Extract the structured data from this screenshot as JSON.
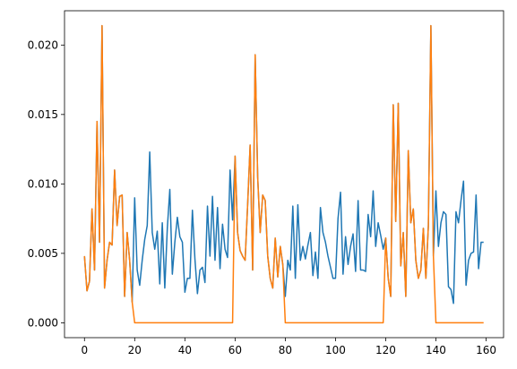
{
  "chart_data": {
    "type": "line",
    "x": [
      0,
      1,
      2,
      3,
      4,
      5,
      6,
      7,
      8,
      9,
      10,
      11,
      12,
      13,
      14,
      15,
      16,
      17,
      18,
      19,
      20,
      21,
      22,
      23,
      24,
      25,
      26,
      27,
      28,
      29,
      30,
      31,
      32,
      33,
      34,
      35,
      36,
      37,
      38,
      39,
      40,
      41,
      42,
      43,
      44,
      45,
      46,
      47,
      48,
      49,
      50,
      51,
      52,
      53,
      54,
      55,
      56,
      57,
      58,
      59,
      60,
      61,
      62,
      63,
      64,
      65,
      66,
      67,
      68,
      69,
      70,
      71,
      72,
      73,
      74,
      75,
      76,
      77,
      78,
      79,
      80,
      81,
      82,
      83,
      84,
      85,
      86,
      87,
      88,
      89,
      90,
      91,
      92,
      93,
      94,
      95,
      96,
      97,
      98,
      99,
      100,
      101,
      102,
      103,
      104,
      105,
      106,
      107,
      108,
      109,
      110,
      111,
      112,
      113,
      114,
      115,
      116,
      117,
      118,
      119,
      120,
      121,
      122,
      123,
      124,
      125,
      126,
      127,
      128,
      129,
      130,
      131,
      132,
      133,
      134,
      135,
      136,
      137,
      138,
      139,
      140,
      141,
      142,
      143,
      144,
      145,
      146,
      147,
      148,
      149,
      150,
      151,
      152,
      153,
      154,
      155,
      156,
      157,
      158,
      159
    ],
    "series": [
      {
        "color": "#1f77b4",
        "values": [
          0.0048,
          0.0023,
          0.003,
          0.0082,
          0.0038,
          0.0145,
          0.0058,
          0.0214,
          0.0025,
          0.0045,
          0.0058,
          0.0056,
          0.011,
          0.007,
          0.0091,
          0.0092,
          0.0019,
          0.0065,
          0.0045,
          0.0015,
          0.009,
          0.0038,
          0.0027,
          0.0045,
          0.006,
          0.007,
          0.0123,
          0.0065,
          0.0053,
          0.0066,
          0.0028,
          0.0072,
          0.0025,
          0.0068,
          0.0096,
          0.0035,
          0.0058,
          0.0076,
          0.0062,
          0.0058,
          0.0022,
          0.0032,
          0.0032,
          0.0081,
          0.0046,
          0.0021,
          0.0038,
          0.004,
          0.0029,
          0.0084,
          0.0048,
          0.0091,
          0.0045,
          0.0083,
          0.0039,
          0.0071,
          0.0053,
          0.0047,
          0.011,
          0.0074,
          0.012,
          0.0065,
          0.0052,
          0.0048,
          0.0045,
          0.0085,
          0.0128,
          0.0038,
          0.0193,
          0.0105,
          0.0065,
          0.0092,
          0.0088,
          0.0048,
          0.0032,
          0.0025,
          0.0061,
          0.0033,
          0.0055,
          0.0042,
          0.0019,
          0.0045,
          0.0038,
          0.0084,
          0.0032,
          0.0085,
          0.0045,
          0.0055,
          0.0046,
          0.0056,
          0.0065,
          0.0034,
          0.0051,
          0.0032,
          0.0083,
          0.0065,
          0.0058,
          0.0048,
          0.004,
          0.0032,
          0.0032,
          0.0075,
          0.0094,
          0.0035,
          0.0062,
          0.0042,
          0.0055,
          0.0064,
          0.0037,
          0.0088,
          0.0038,
          0.0038,
          0.0037,
          0.0078,
          0.0062,
          0.0095,
          0.0055,
          0.0072,
          0.0063,
          0.0053,
          0.0061,
          0.0032,
          0.0019,
          0.0157,
          0.0073,
          0.0158,
          0.0041,
          0.0065,
          0.0019,
          0.0124,
          0.0072,
          0.0082,
          0.0045,
          0.0032,
          0.0038,
          0.0068,
          0.0032,
          0.007,
          0.0214,
          0.0048,
          0.0095,
          0.0055,
          0.0072,
          0.008,
          0.0078,
          0.0026,
          0.0024,
          0.0014,
          0.008,
          0.0072,
          0.0088,
          0.0102,
          0.0027,
          0.0045,
          0.005,
          0.0051,
          0.0092,
          0.0039,
          0.0058,
          0.0058
        ]
      },
      {
        "color": "#ff7f0e",
        "values": [
          0.0048,
          0.0023,
          0.003,
          0.0082,
          0.0038,
          0.0145,
          0.0058,
          0.0214,
          0.0025,
          0.0045,
          0.0058,
          0.0056,
          0.011,
          0.007,
          0.0091,
          0.0092,
          0.0019,
          0.0065,
          0.0045,
          0.0015,
          0,
          0,
          0,
          0,
          0,
          0,
          0,
          0,
          0,
          0,
          0,
          0,
          0,
          0,
          0,
          0,
          0,
          0,
          0,
          0,
          0,
          0,
          0,
          0,
          0,
          0,
          0,
          0,
          0,
          0,
          0,
          0,
          0,
          0,
          0,
          0,
          0,
          0,
          0,
          0,
          0.012,
          0.0065,
          0.0052,
          0.0048,
          0.0045,
          0.0085,
          0.0128,
          0.0038,
          0.0193,
          0.0105,
          0.0065,
          0.0092,
          0.0088,
          0.0048,
          0.0032,
          0.0025,
          0.0061,
          0.0033,
          0.0055,
          0.0042,
          0,
          0,
          0,
          0,
          0,
          0,
          0,
          0,
          0,
          0,
          0,
          0,
          0,
          0,
          0,
          0,
          0,
          0,
          0,
          0,
          0,
          0,
          0,
          0,
          0,
          0,
          0,
          0,
          0,
          0,
          0,
          0,
          0,
          0,
          0,
          0,
          0,
          0,
          0,
          0,
          0.0061,
          0.0032,
          0.0019,
          0.0157,
          0.0073,
          0.0158,
          0.0041,
          0.0065,
          0.0019,
          0.0124,
          0.0072,
          0.0082,
          0.0045,
          0.0032,
          0.0038,
          0.0068,
          0.0032,
          0.007,
          0.0214,
          0.0048,
          0,
          0,
          0,
          0,
          0,
          0,
          0,
          0,
          0,
          0,
          0,
          0,
          0,
          0,
          0,
          0,
          0,
          0,
          0,
          0
        ]
      }
    ],
    "xlim": [
      -7.95,
      166.95
    ],
    "xticks": [
      0,
      20,
      40,
      60,
      80,
      100,
      120,
      140,
      160
    ],
    "ylim": [
      -0.00107,
      0.02247
    ],
    "yticks": [
      {
        "value": 0,
        "label": "0.000"
      },
      {
        "value": 0.005,
        "label": "0.005"
      },
      {
        "value": 0.01,
        "label": "0.010"
      },
      {
        "value": 0.015,
        "label": "0.015"
      },
      {
        "value": 0.02,
        "label": "0.020"
      }
    ]
  }
}
